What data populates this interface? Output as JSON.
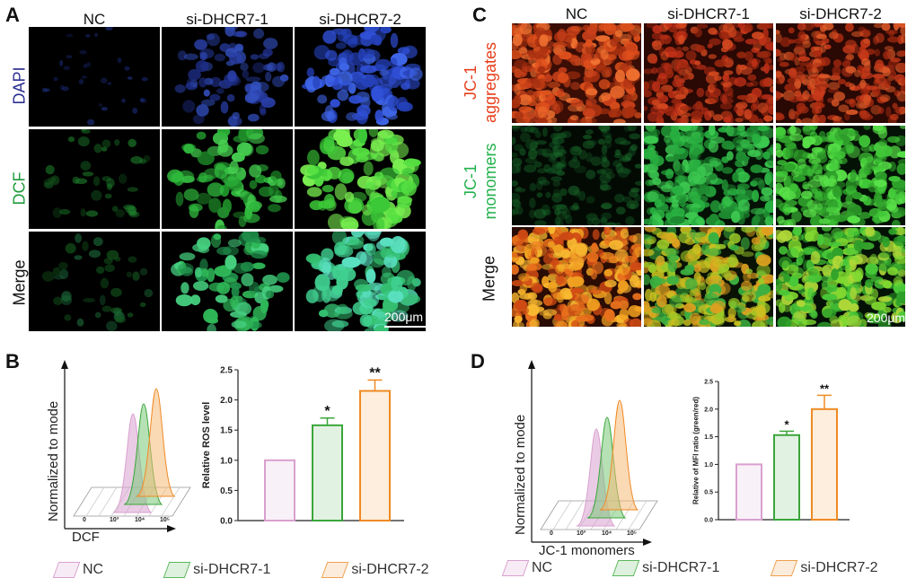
{
  "panels": {
    "A": {
      "label": "A",
      "columns": [
        "NC",
        "si-DHCR7-1",
        "si-DHCR7-2"
      ],
      "rows": [
        {
          "label": "DAPI",
          "color": "#2b2f8f"
        },
        {
          "label": "DCF",
          "color": "#1e9a3b"
        },
        {
          "label": "Merge",
          "color": "#111111"
        }
      ],
      "scalebar": "200μm"
    },
    "C": {
      "label": "C",
      "columns": [
        "NC",
        "si-DHCR7-1",
        "si-DHCR7-2"
      ],
      "rows": [
        {
          "label1": "JC-1",
          "label2": "aggregates",
          "color": "#e8401c"
        },
        {
          "label1": "JC-1",
          "label2": "monomers",
          "color": "#22b14c"
        },
        {
          "label1": "Merge",
          "label2": "",
          "color": "#111111"
        }
      ],
      "scalebar": "200μm"
    },
    "B": {
      "label": "B",
      "hist_ylabel": "Normalized to mode",
      "hist_xlabel": "DCF",
      "hist_ticks": [
        "0",
        "10³",
        "10⁴",
        "10⁵"
      ]
    },
    "D": {
      "label": "D",
      "hist_ylabel": "Normalized to mode",
      "hist_xlabel": "JC-1 monomers",
      "hist_ticks": [
        "0",
        "10³",
        "10⁴",
        "10⁵"
      ]
    }
  },
  "legend": {
    "items": [
      {
        "label": "NC",
        "color": "#d9a0cf"
      },
      {
        "label": "si-DHCR7-1",
        "color": "#5cb85c"
      },
      {
        "label": "si-DHCR7-2",
        "color": "#f0a050"
      }
    ]
  },
  "colors": {
    "nc": "#d9a0cf",
    "si1": "#3aa63a",
    "si2": "#f08a24"
  },
  "chart_data": [
    {
      "type": "bar",
      "panel": "B",
      "categories": [
        "NC",
        "si-DHCR7-1",
        "si-DHCR7-2"
      ],
      "values": [
        1.0,
        1.58,
        2.15
      ],
      "errors": [
        0.0,
        0.12,
        0.18
      ],
      "significance": [
        "",
        "*",
        "**"
      ],
      "ylabel": "Relative ROS level",
      "ylim": [
        0,
        2.5
      ],
      "yticks": [
        "0.0",
        "0.5",
        "1.0",
        "1.5",
        "2.0",
        "2.5"
      ],
      "colors": [
        "#d9a0cf",
        "#3aa63a",
        "#f08a24"
      ]
    },
    {
      "type": "bar",
      "panel": "D",
      "categories": [
        "NC",
        "si-DHCR7-1",
        "si-DHCR7-2"
      ],
      "values": [
        1.0,
        1.53,
        2.0
      ],
      "errors": [
        0.0,
        0.07,
        0.25
      ],
      "significance": [
        "",
        "*",
        "**"
      ],
      "ylabel": "Relative of MFI ratio (green/red)",
      "ylim": [
        0,
        2.5
      ],
      "yticks": [
        "0.0",
        "0.5",
        "1.0",
        "1.5",
        "2.0",
        "2.5"
      ],
      "colors": [
        "#d9a0cf",
        "#3aa63a",
        "#f08a24"
      ]
    }
  ]
}
